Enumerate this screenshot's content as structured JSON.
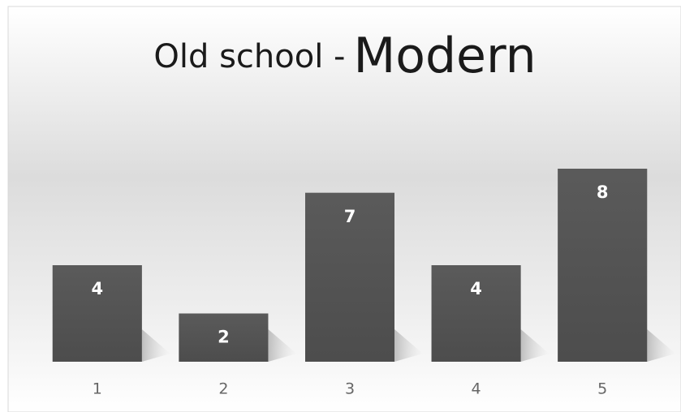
{
  "chart_data": {
    "type": "bar",
    "title": "Old school -",
    "title_emphasis": "Modern",
    "categories": [
      "1",
      "2",
      "3",
      "4",
      "5"
    ],
    "values": [
      4,
      2,
      7,
      4,
      8
    ],
    "color": "#555555",
    "ylim": [
      0,
      8
    ]
  }
}
